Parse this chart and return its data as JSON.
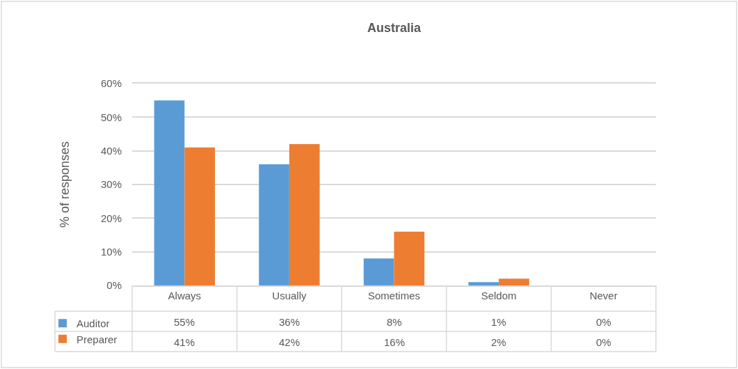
{
  "chart_data": {
    "type": "bar",
    "title": "Australia",
    "ylabel": "% of responses",
    "categories": [
      "Always",
      "Usually",
      "Sometimes",
      "Seldom",
      "Never"
    ],
    "series": [
      {
        "name": "Auditor",
        "color": "#5b9bd5",
        "values": [
          55,
          36,
          8,
          1,
          0
        ],
        "value_labels": [
          "55%",
          "36%",
          "8%",
          "1%",
          "0%"
        ]
      },
      {
        "name": "Preparer",
        "color": "#ed7d31",
        "values": [
          41,
          42,
          16,
          2,
          0
        ],
        "value_labels": [
          "41%",
          "42%",
          "16%",
          "2%",
          "0%"
        ]
      }
    ],
    "ylim": [
      0,
      60
    ],
    "yticks": [
      {
        "value": 0,
        "label": "0%"
      },
      {
        "value": 10,
        "label": "10%"
      },
      {
        "value": 20,
        "label": "20%"
      },
      {
        "value": 30,
        "label": "30%"
      },
      {
        "value": 40,
        "label": "40%"
      },
      {
        "value": 50,
        "label": "50%"
      },
      {
        "value": 60,
        "label": "60%"
      }
    ],
    "grid": "y",
    "legend": "bottom left"
  }
}
